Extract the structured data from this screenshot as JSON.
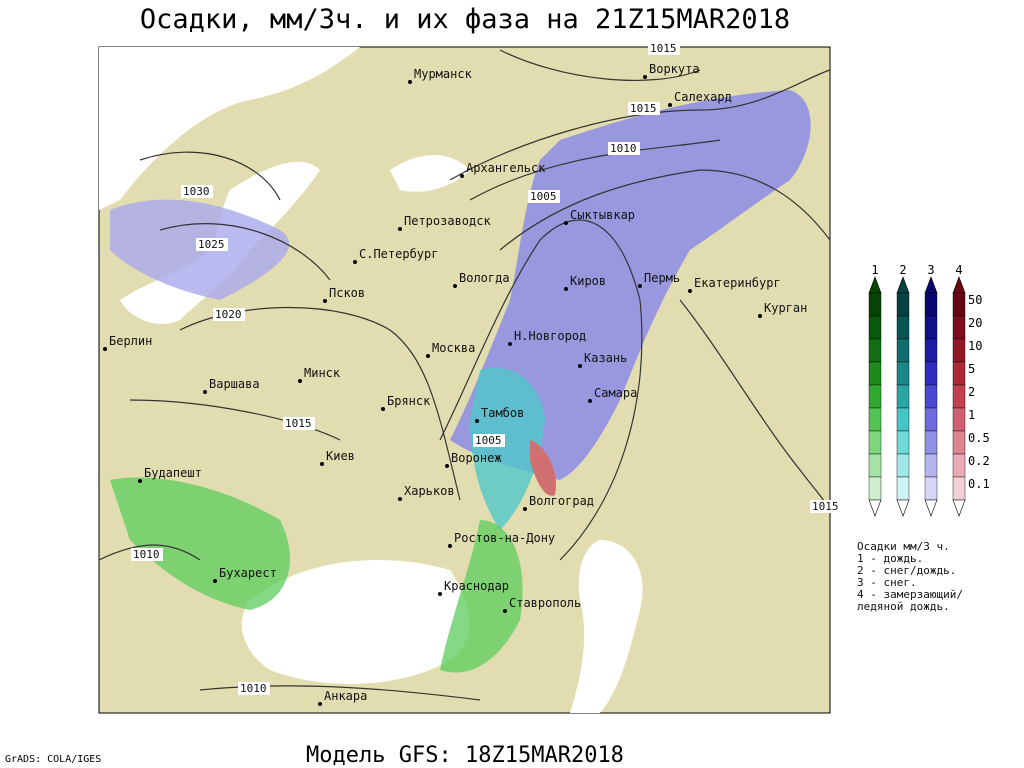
{
  "title": "Осадки, мм/3ч. и их фаза на 21Z15MAR2018",
  "footer": "Модель GFS: 18Z15MAR2018",
  "credit": "GrADS: COLA/IGES",
  "cities": [
    "Мурманск",
    "Воркута",
    "Салехард",
    "Архангельск",
    "Сыктывкар",
    "Петрозаводск",
    "С.Петербург",
    "Вологда",
    "Киров",
    "Пермь",
    "Екатеринбург",
    "Курган",
    "Псков",
    "Н.Новгород",
    "Казань",
    "Берлин",
    "Москва",
    "Минск",
    "Варшава",
    "Самара",
    "Брянск",
    "Тамбов",
    "Киев",
    "Воронеж",
    "Будапешт",
    "Харьков",
    "Волгоград",
    "Ростов-на-Дону",
    "Бухарест",
    "Краснодар",
    "Ставрополь",
    "Анкара"
  ],
  "isobars": [
    1015,
    1015,
    1010,
    1005,
    1030,
    1025,
    1020,
    1015,
    1005,
    1010,
    1015,
    1010
  ],
  "legend": {
    "phases": [
      1,
      2,
      3,
      4
    ],
    "levels": [
      50,
      20,
      10,
      5,
      2,
      1,
      0.5,
      0.2,
      0.1
    ],
    "notes": [
      "Осадки мм/3 ч.",
      "1 - дождь.",
      "2 - снег/дождь.",
      "3 - снег.",
      "4 - замерзающий/",
      "ледяной дождь."
    ]
  }
}
